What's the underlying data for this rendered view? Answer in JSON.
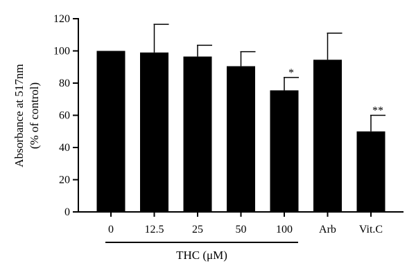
{
  "chart_data": {
    "type": "bar",
    "ylabel_line1": "Absorbance at 517nm",
    "ylabel_line2": "(% of control)",
    "ylim": [
      0,
      120
    ],
    "yticks": [
      0,
      20,
      40,
      60,
      80,
      100,
      120
    ],
    "categories": [
      "0",
      "12.5",
      "25",
      "50",
      "100",
      "Arb",
      "Vit.C"
    ],
    "values": [
      100,
      99,
      96.5,
      90.5,
      75.5,
      94.5,
      50
    ],
    "error_upper": [
      0,
      17.5,
      7,
      9,
      8,
      16.5,
      10
    ],
    "significance": [
      "",
      "",
      "",
      "",
      "*",
      "",
      "**"
    ],
    "group_label": {
      "text": "THC (μM)",
      "spans": [
        "0",
        "12.5",
        "25",
        "50",
        "100"
      ]
    },
    "bar_color": "#000000",
    "grid": false,
    "legend": "none"
  }
}
